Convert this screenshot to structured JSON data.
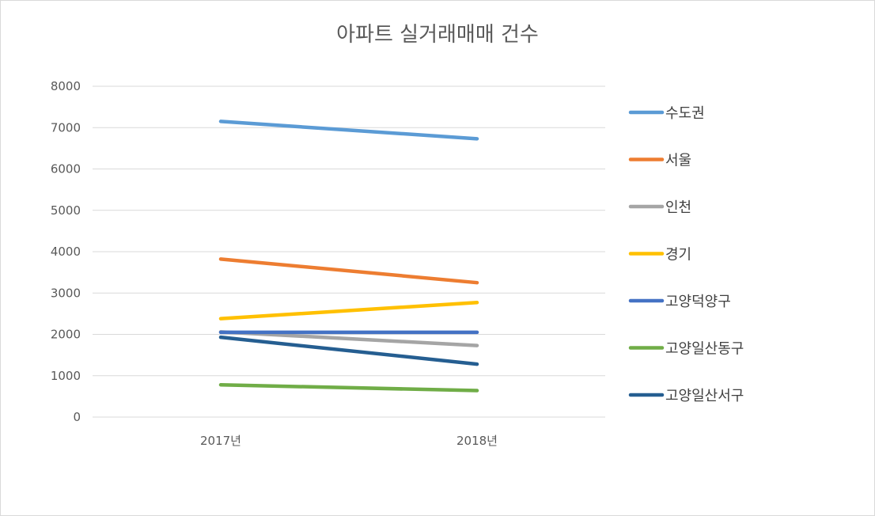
{
  "chart_data": {
    "type": "line",
    "title": "아파트 실거래매매 건수",
    "categories": [
      "2017년",
      "2018년"
    ],
    "ylim": [
      0,
      8000
    ],
    "yticks": [
      0,
      1000,
      2000,
      3000,
      4000,
      5000,
      6000,
      7000,
      8000
    ],
    "grid": true,
    "legend_position": "right",
    "series": [
      {
        "name": "수도권",
        "color": "#5B9BD5",
        "values": [
          7150,
          6730
        ]
      },
      {
        "name": "서울",
        "color": "#ED7D31",
        "values": [
          3820,
          3250
        ]
      },
      {
        "name": "인천",
        "color": "#A5A5A5",
        "values": [
          2060,
          1730
        ]
      },
      {
        "name": "경기",
        "color": "#FFC000",
        "values": [
          2380,
          2770
        ]
      },
      {
        "name": "고양덕양구",
        "color": "#4472C4",
        "values": [
          2050,
          2050
        ]
      },
      {
        "name": "고양일산동구",
        "color": "#70AD47",
        "values": [
          780,
          640
        ]
      },
      {
        "name": "고양일산서구",
        "color": "#255E91",
        "values": [
          1930,
          1280
        ]
      }
    ]
  }
}
